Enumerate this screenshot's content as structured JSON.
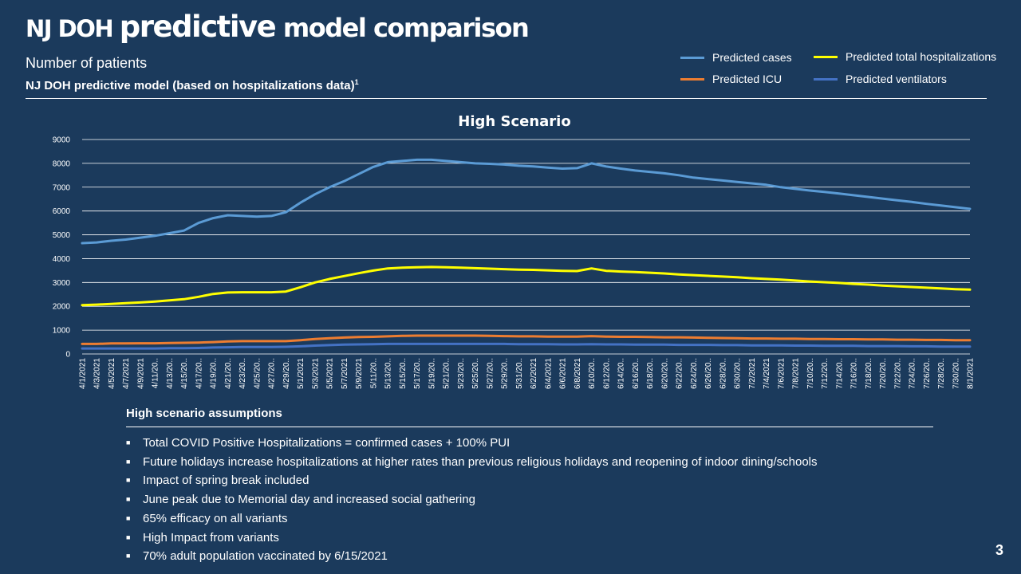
{
  "slide": {
    "title_part1": "NJ DOH ",
    "title_part2": "predictive",
    "title_part3": " model comparison",
    "subtitle": "Number of patients",
    "source_text": "NJ DOH predictive model (based on hospitalizations data)",
    "source_footnote": "1",
    "page_number": "3"
  },
  "legend": [
    {
      "label": "Predicted cases",
      "color": "#5b9bd5"
    },
    {
      "label": "Predicted total hospitalizations",
      "color": "#ffff00"
    },
    {
      "label": "Predicted ICU",
      "color": "#ed7d31"
    },
    {
      "label": "Predicted ventilators",
      "color": "#4472c4"
    }
  ],
  "assumptions": {
    "heading": "High scenario assumptions",
    "items": [
      "Total COVID Positive Hospitalizations = confirmed cases + 100% PUI",
      "Future holidays increase hospitalizations at higher rates than previous religious holidays and reopening of indoor dining/schools",
      "Impact of spring break included",
      "June peak due to Memorial day and increased social gathering",
      "65% efficacy on all variants",
      "High Impact from variants",
      "70% adult population vaccinated by 6/15/2021"
    ]
  },
  "chart_data": {
    "type": "line",
    "title": "High Scenario",
    "xlabel": "",
    "ylabel": "",
    "ylim": [
      0,
      9000
    ],
    "yticks": [
      0,
      1000,
      2000,
      3000,
      4000,
      5000,
      6000,
      7000,
      8000,
      9000
    ],
    "x": [
      "4/1/2021",
      "4/3/2021",
      "4/5/2021",
      "4/7/2021",
      "4/9/2021",
      "4/11/20..",
      "4/13/20..",
      "4/15/20..",
      "4/17/20..",
      "4/19/20..",
      "4/21/20..",
      "4/23/20..",
      "4/25/20..",
      "4/27/20..",
      "4/29/20..",
      "5/1/2021",
      "5/3/2021",
      "5/5/2021",
      "5/7/2021",
      "5/9/2021",
      "5/11/20..",
      "5/13/20..",
      "5/15/20..",
      "5/17/20..",
      "5/19/20..",
      "5/21/20..",
      "5/23/20..",
      "5/25/20..",
      "5/27/20..",
      "5/29/20..",
      "5/31/20..",
      "6/2/2021",
      "6/4/2021",
      "6/6/2021",
      "6/8/2021",
      "6/10/20..",
      "6/12/20..",
      "6/14/20..",
      "6/16/20..",
      "6/18/20..",
      "6/20/20..",
      "6/22/20..",
      "6/24/20..",
      "6/26/20..",
      "6/28/20..",
      "6/30/20..",
      "7/2/2021",
      "7/4/2021",
      "7/6/2021",
      "7/8/2021",
      "7/10/20..",
      "7/12/20..",
      "7/14/20..",
      "7/16/20..",
      "7/18/20..",
      "7/20/20..",
      "7/22/20..",
      "7/24/20..",
      "7/26/20..",
      "7/28/20..",
      "7/30/20..",
      "8/1/2021"
    ],
    "grid": true,
    "series": [
      {
        "name": "Predicted cases",
        "color": "#5b9bd5",
        "values": [
          4650,
          4680,
          4750,
          4800,
          4880,
          4960,
          5070,
          5180,
          5500,
          5700,
          5820,
          5790,
          5760,
          5790,
          5950,
          6350,
          6700,
          7000,
          7250,
          7550,
          7850,
          8050,
          8100,
          8150,
          8150,
          8100,
          8050,
          8000,
          7980,
          7950,
          7900,
          7870,
          7820,
          7780,
          7800,
          8000,
          7870,
          7780,
          7700,
          7640,
          7580,
          7500,
          7400,
          7340,
          7280,
          7220,
          7160,
          7100,
          7000,
          6930,
          6860,
          6800,
          6730,
          6660,
          6590,
          6520,
          6450,
          6380,
          6300,
          6230,
          6160,
          6090
        ]
      },
      {
        "name": "Predicted total hospitalizations",
        "color": "#ffff00",
        "values": [
          2050,
          2070,
          2100,
          2130,
          2160,
          2200,
          2250,
          2300,
          2400,
          2520,
          2580,
          2590,
          2590,
          2590,
          2620,
          2800,
          3000,
          3150,
          3270,
          3390,
          3500,
          3590,
          3620,
          3640,
          3650,
          3640,
          3620,
          3600,
          3580,
          3560,
          3540,
          3530,
          3510,
          3490,
          3480,
          3590,
          3490,
          3460,
          3440,
          3410,
          3380,
          3340,
          3310,
          3280,
          3250,
          3220,
          3180,
          3150,
          3120,
          3080,
          3040,
          3010,
          2980,
          2940,
          2910,
          2870,
          2840,
          2810,
          2780,
          2750,
          2720,
          2700
        ]
      },
      {
        "name": "Predicted ICU",
        "color": "#ed7d31",
        "values": [
          420,
          420,
          440,
          440,
          450,
          450,
          460,
          470,
          480,
          500,
          530,
          540,
          540,
          540,
          540,
          580,
          630,
          660,
          690,
          710,
          720,
          740,
          760,
          770,
          770,
          770,
          770,
          770,
          760,
          750,
          740,
          740,
          730,
          730,
          730,
          750,
          730,
          720,
          720,
          710,
          700,
          700,
          690,
          680,
          670,
          660,
          650,
          650,
          640,
          640,
          630,
          630,
          620,
          620,
          610,
          610,
          600,
          600,
          590,
          590,
          580,
          580
        ]
      },
      {
        "name": "Predicted ventilators",
        "color": "#4472c4",
        "values": [
          230,
          230,
          230,
          230,
          230,
          230,
          240,
          240,
          250,
          270,
          280,
          290,
          290,
          290,
          300,
          320,
          350,
          370,
          390,
          400,
          410,
          420,
          420,
          420,
          420,
          420,
          420,
          420,
          420,
          420,
          410,
          410,
          410,
          400,
          400,
          410,
          400,
          400,
          390,
          390,
          390,
          380,
          380,
          380,
          370,
          370,
          360,
          360,
          360,
          350,
          350,
          340,
          340,
          340,
          330,
          330,
          330,
          320,
          320,
          310,
          310,
          310
        ]
      }
    ]
  }
}
